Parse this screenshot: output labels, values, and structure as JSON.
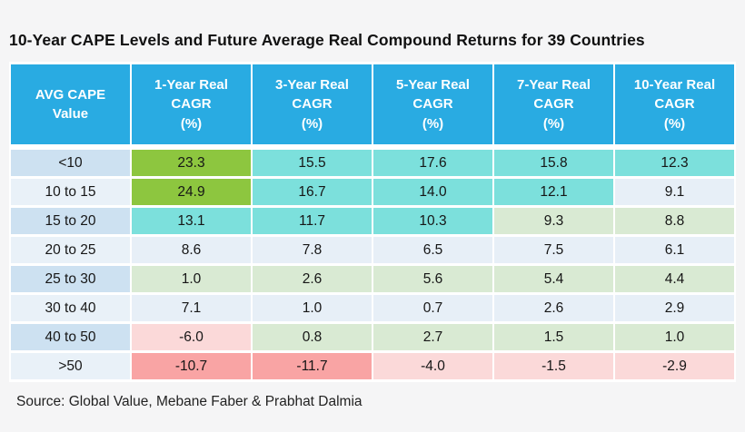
{
  "title": "10-Year CAPE Levels and Future Average Real Compound Returns for 39 Countries",
  "source": "Source: Global Value, Mebane Faber & Prabhat Dalmia",
  "chart_data": {
    "type": "table",
    "columns": [
      "AVG CAPE\nValue",
      "1-Year Real\nCAGR\n(%)",
      "3-Year Real\nCAGR\n(%)",
      "5-Year Real\nCAGR\n(%)",
      "7-Year Real\nCAGR\n(%)",
      "10-Year Real\nCAGR\n(%)"
    ],
    "rows": [
      {
        "label": "<10",
        "values": [
          23.3,
          15.5,
          17.6,
          15.8,
          12.3
        ],
        "cell_colors": [
          "green",
          "teal",
          "teal",
          "teal",
          "teal"
        ]
      },
      {
        "label": "10 to 15",
        "values": [
          24.9,
          16.7,
          14.0,
          12.1,
          9.1
        ],
        "cell_colors": [
          "green",
          "teal",
          "teal",
          "teal",
          "plain"
        ]
      },
      {
        "label": "15 to 20",
        "values": [
          13.1,
          11.7,
          10.3,
          9.3,
          8.8
        ],
        "cell_colors": [
          "teal",
          "teal",
          "teal",
          "light_green",
          "light_green"
        ]
      },
      {
        "label": "20 to 25",
        "values": [
          8.6,
          7.8,
          6.5,
          7.5,
          6.1
        ],
        "cell_colors": [
          "plain",
          "plain",
          "plain",
          "plain",
          "plain"
        ]
      },
      {
        "label": "25 to 30",
        "values": [
          1.0,
          2.6,
          5.6,
          5.4,
          4.4
        ],
        "cell_colors": [
          "light_green",
          "light_green",
          "light_green",
          "light_green",
          "light_green"
        ]
      },
      {
        "label": "30 to 40",
        "values": [
          7.1,
          1.0,
          0.7,
          2.6,
          2.9
        ],
        "cell_colors": [
          "plain",
          "plain",
          "plain",
          "plain",
          "plain"
        ]
      },
      {
        "label": "40 to 50",
        "values": [
          -6.0,
          0.8,
          2.7,
          1.5,
          1.0
        ],
        "cell_colors": [
          "light_pink",
          "light_green",
          "light_green",
          "light_green",
          "light_green"
        ]
      },
      {
        "label": ">50",
        "values": [
          -10.7,
          -11.7,
          -4.0,
          -1.5,
          -2.9
        ],
        "cell_colors": [
          "salmon",
          "salmon",
          "light_pink",
          "light_pink",
          "light_pink"
        ]
      }
    ],
    "palette": {
      "header": "#29abe2",
      "green": "#8dc63f",
      "teal": "#7ce0dc",
      "light_green": "#d9ead3",
      "plain": "#e7eff7",
      "light_pink": "#fbd9d9",
      "salmon": "#f9a4a4",
      "row_label_dark": "#cde1f1",
      "row_label_light": "#e9f1f8"
    },
    "legend_position": "none",
    "grid": "white-cell-gaps"
  }
}
